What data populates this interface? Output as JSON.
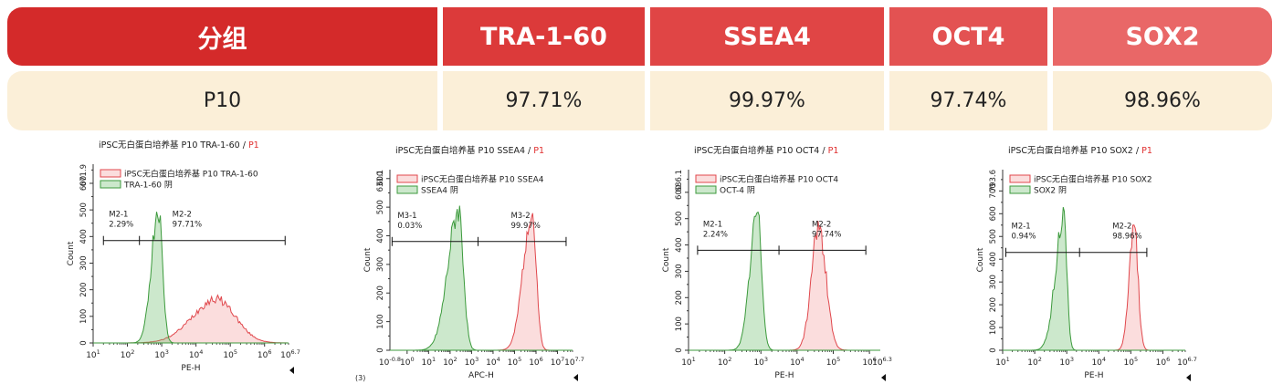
{
  "table": {
    "headers": [
      "分组",
      "TRA-1-60",
      "SSEA4",
      "OCT4",
      "SOX2"
    ],
    "rows": [
      [
        "P10",
        "97.71%",
        "99.97%",
        "97.74%",
        "98.96%"
      ]
    ]
  },
  "chart_data": [
    {
      "type": "area",
      "title_main": "iPSC无白蛋白培养基 P10 TRA-1-60 / ",
      "title_gate": "P1",
      "xlabel": "PE-H",
      "ylabel": "Count",
      "ylim": [
        0,
        671.9
      ],
      "ymax_label": "671.9",
      "xlim_log": [
        1,
        6.7
      ],
      "x_end_label": "6.7",
      "legend": [
        "iPSC无白蛋白培养基 P10 TRA-1-60",
        "TRA-1-60 阴"
      ],
      "gates": [
        {
          "label": "M2-1",
          "value": "2.29%"
        },
        {
          "label": "M2-2",
          "value": "97.71%"
        }
      ],
      "gate_marker": {
        "y": 385,
        "x_log": [
          1.3,
          2.35,
          6.6
        ]
      },
      "series": [
        {
          "name": "iPSC无白蛋白培养基 P10 TRA-1-60",
          "color": "#e0474c",
          "peak_log": 4.6,
          "width_left": 0.7,
          "width_right": 0.55,
          "peak": 165
        },
        {
          "name": "TRA-1-60 阴",
          "color": "#3c9a3c",
          "peak_log": 2.9,
          "width_left": 0.2,
          "width_right": 0.12,
          "peak": 510
        }
      ],
      "footnote": ""
    },
    {
      "type": "area",
      "title_main": "iPSC无白蛋白培养基 P10 SSEA4 / ",
      "title_gate": "P1",
      "xlabel": "APC-H",
      "ylabel": "Count",
      "ylim": [
        0,
        631.1
      ],
      "ymax_label": "631.1",
      "xlim_log": [
        -0.8,
        7.7
      ],
      "x_start_label": "-0.8",
      "x_end_label": "7.7",
      "legend": [
        "iPSC无白蛋白培养基 P10 SSEA4",
        "SSEA4 阴"
      ],
      "gates": [
        {
          "label": "M3-1",
          "value": "0.03%"
        },
        {
          "label": "M3-2",
          "value": "99.97%"
        }
      ],
      "gate_marker": {
        "y": 380,
        "x_log": [
          -0.7,
          3.3,
          7.4
        ]
      },
      "series": [
        {
          "name": "iPSC无白蛋白培养基 P10 SSEA4",
          "color": "#e0474c",
          "peak_log": 5.8,
          "width_left": 0.4,
          "width_right": 0.2,
          "peak": 490
        },
        {
          "name": "SSEA4 阴",
          "color": "#3c9a3c",
          "peak_log": 2.4,
          "width_left": 0.5,
          "width_right": 0.22,
          "peak": 490
        }
      ],
      "footnote": "(3)"
    },
    {
      "type": "area",
      "title_main": "iPSC无白蛋白培养基 P10 OCT4 / ",
      "title_gate": "P1",
      "xlabel": "PE-H",
      "ylabel": "Count",
      "ylim": [
        0,
        686.1
      ],
      "ymax_label": "686.1",
      "xlim_log": [
        1,
        6.3
      ],
      "x_end_label": "6.3",
      "legend": [
        "iPSC无白蛋白培养基 P10 OCT4",
        "OCT-4 阴"
      ],
      "gates": [
        {
          "label": "M2-1",
          "value": "2.24%"
        },
        {
          "label": "M2-2",
          "value": "97.74%"
        }
      ],
      "gate_marker": {
        "y": 380,
        "x_log": [
          1.25,
          3.5,
          5.9
        ]
      },
      "series": [
        {
          "name": "iPSC无白蛋白培养基 P10 OCT4",
          "color": "#e0474c",
          "peak_log": 4.6,
          "width_left": 0.2,
          "width_right": 0.2,
          "peak": 470
        },
        {
          "name": "OCT-4 阴",
          "color": "#3c9a3c",
          "peak_log": 2.9,
          "width_left": 0.2,
          "width_right": 0.12,
          "peak": 520
        }
      ],
      "footnote": ""
    },
    {
      "type": "area",
      "title_main": "iPSC无白蛋白培养基 P10 SOX2 / ",
      "title_gate": "P1",
      "xlabel": "PE-H",
      "ylabel": "Count",
      "ylim": [
        0,
        793.6
      ],
      "ymax_label": "793.6",
      "xlim_log": [
        1,
        6.7
      ],
      "x_end_label": "6.7",
      "legend": [
        "iPSC无白蛋白培养基 P10 SOX2",
        "SOX2 阴"
      ],
      "gates": [
        {
          "label": "M2-1",
          "value": "0.94%"
        },
        {
          "label": "M2-2",
          "value": "98.96%"
        }
      ],
      "gate_marker": {
        "y": 430,
        "x_log": [
          1.1,
          3.4,
          5.5
        ]
      },
      "series": [
        {
          "name": "iPSC无白蛋白培养基 P10 SOX2",
          "color": "#e0474c",
          "peak_log": 5.1,
          "width_left": 0.15,
          "width_right": 0.12,
          "peak": 560
        },
        {
          "name": "SOX2 阴",
          "color": "#3c9a3c",
          "peak_log": 2.9,
          "width_left": 0.25,
          "width_right": 0.1,
          "peak": 590
        }
      ],
      "footnote": ""
    }
  ]
}
